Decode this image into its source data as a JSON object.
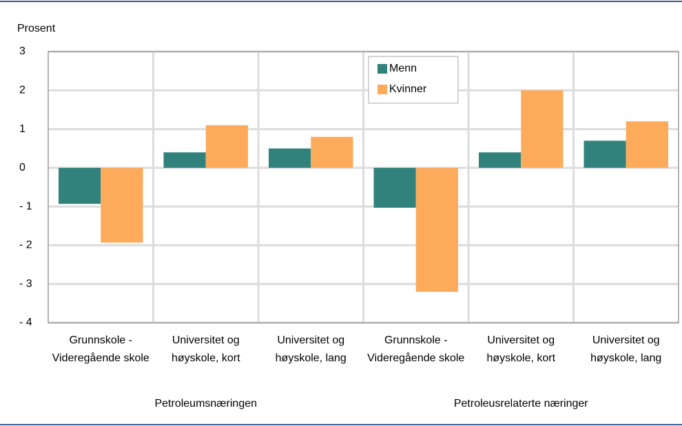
{
  "chart_data": {
    "type": "bar",
    "y_label": "Prosent",
    "categories": [
      "Grunnskole - Videregående skole",
      "Universitet og høyskole, kort",
      "Universitet og høyskole, lang",
      "Grunnskole - Videregående skole",
      "Universitet og høyskole, kort",
      "Universitet og høyskole, lang"
    ],
    "groups": [
      "Petroleumsnæringen",
      "Petroleusrelaterte næringer"
    ],
    "series": [
      {
        "name": "Menn",
        "color": "#31827c",
        "values": [
          -0.93,
          0.4,
          0.5,
          -1.03,
          0.4,
          0.7
        ]
      },
      {
        "name": "Kvinner",
        "color": "#fdab5b",
        "values": [
          -1.93,
          1.1,
          0.8,
          -3.2,
          2.0,
          1.2
        ]
      }
    ],
    "ylim": [
      -4,
      3
    ],
    "yticks": [
      {
        "value": -4,
        "label": "- 4"
      },
      {
        "value": -3,
        "label": "- 3"
      },
      {
        "value": -2,
        "label": "- 2"
      },
      {
        "value": -1,
        "label": "- 1"
      },
      0,
      1,
      2,
      3
    ],
    "grid": true
  }
}
